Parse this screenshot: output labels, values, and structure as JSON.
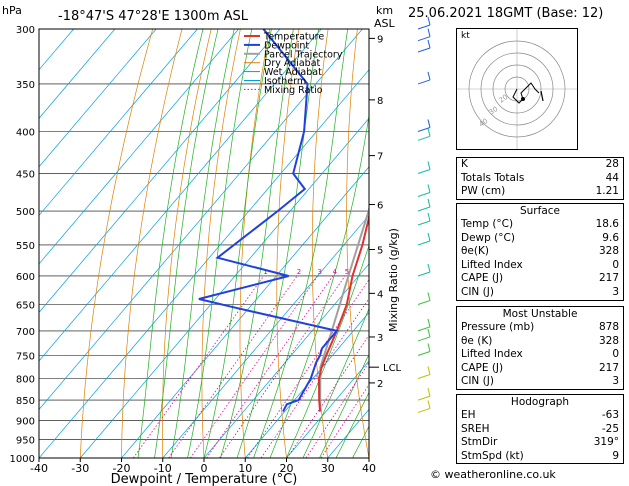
{
  "header": {
    "hpa_label": "hPa",
    "location": "-18°47'S  47°28'E  1300m  ASL",
    "km_label": "km",
    "asl_label": "ASL",
    "datetime": "25.06.2021  18GMT  (Base: 12)"
  },
  "chart_data": {
    "type": "skew-t log-p",
    "pressure_ticks": [
      300,
      350,
      400,
      450,
      500,
      550,
      600,
      650,
      700,
      750,
      800,
      850,
      900,
      950,
      1000
    ],
    "temp_ticks": [
      -40,
      -30,
      -20,
      -10,
      0,
      10,
      20,
      30,
      40
    ],
    "xlabel": "Dewpoint / Temperature (°C)",
    "ylabel": "Mixing Ratio (g/kg)",
    "km_ticks": [
      {
        "label": "9",
        "p": 308
      },
      {
        "label": "8",
        "p": 366
      },
      {
        "label": "7",
        "p": 428
      },
      {
        "label": "6",
        "p": 491
      },
      {
        "label": "5",
        "p": 557
      },
      {
        "label": "4",
        "p": 630
      },
      {
        "label": "3",
        "p": 712
      },
      {
        "label": "2",
        "p": 810
      }
    ],
    "lcl": {
      "label": "LCL",
      "p": 775
    },
    "mixing_ratio_values": [
      "1",
      "2",
      "3",
      "4",
      "5",
      "8",
      "10",
      "15",
      "20",
      "25"
    ],
    "legend": [
      "Temperature",
      "Dewpoint",
      "Parcel Trajectory",
      "Dry Adiabat",
      "Wet Adiabat",
      "Isotherm",
      "Mixing Ratio"
    ],
    "legend_placement": "top-left of plot",
    "temperature": [
      {
        "p": 878,
        "t": 18.6
      },
      {
        "p": 850,
        "t": 16.0
      },
      {
        "p": 800,
        "t": 11.5
      },
      {
        "p": 775,
        "t": 9.8
      },
      {
        "p": 750,
        "t": 8.5
      },
      {
        "p": 700,
        "t": 6.0
      },
      {
        "p": 650,
        "t": 3.0
      },
      {
        "p": 600,
        "t": -1.5
      },
      {
        "p": 550,
        "t": -5.5
      },
      {
        "p": 500,
        "t": -10.5
      },
      {
        "p": 450,
        "t": -16.5
      },
      {
        "p": 400,
        "t": -23.5
      },
      {
        "p": 370,
        "t": -29.0
      },
      {
        "p": 350,
        "t": -31.5
      },
      {
        "p": 300,
        "t": -41.0
      }
    ],
    "dewpoint": [
      {
        "p": 878,
        "t": 9.6
      },
      {
        "p": 860,
        "t": 9.0
      },
      {
        "p": 850,
        "t": 11.0
      },
      {
        "p": 800,
        "t": 9.5
      },
      {
        "p": 765,
        "t": 7.5
      },
      {
        "p": 750,
        "t": 7.0
      },
      {
        "p": 735,
        "t": 6.0
      },
      {
        "p": 700,
        "t": 6.0
      },
      {
        "p": 655,
        "t": -24.0
      },
      {
        "p": 640,
        "t": -34.0
      },
      {
        "p": 600,
        "t": -17.0
      },
      {
        "p": 570,
        "t": -38.0
      },
      {
        "p": 500,
        "t": -33.0
      },
      {
        "p": 470,
        "t": -31.0
      },
      {
        "p": 450,
        "t": -37.0
      },
      {
        "p": 400,
        "t": -43.0
      },
      {
        "p": 350,
        "t": -52.0
      },
      {
        "p": 300,
        "t": -74.0
      }
    ],
    "parcel": [
      {
        "p": 878,
        "t": 18.6
      },
      {
        "p": 775,
        "t": 9.5
      },
      {
        "p": 700,
        "t": 4.8
      },
      {
        "p": 600,
        "t": -2.5
      },
      {
        "p": 500,
        "t": -11.0
      },
      {
        "p": 400,
        "t": -22.5
      },
      {
        "p": 300,
        "t": -39.0
      }
    ],
    "colors": {
      "temperature": "#e03030",
      "dewpoint": "#2040e0",
      "parcel": "#a0a0a0",
      "dry_adiabat": "#e08000",
      "wet_adiabat": "#20b020",
      "isotherm": "#00a0e0",
      "mixing_ratio": "#e000a0",
      "wind_barb": "#40c040"
    }
  },
  "hodograph": {
    "label": "kt",
    "ring_labels": [
      "10",
      "20",
      "30",
      "40"
    ]
  },
  "indices": [
    {
      "label": "K",
      "value": "28"
    },
    {
      "label": "Totals Totals",
      "value": "44"
    },
    {
      "label": "PW (cm)",
      "value": "1.21"
    }
  ],
  "surface": {
    "title": "Surface",
    "rows": [
      {
        "label": "Temp (°C)",
        "value": "18.6"
      },
      {
        "label": "Dewp (°C)",
        "value": "9.6"
      },
      {
        "label": "θe(K)",
        "value": "328"
      },
      {
        "label": "Lifted Index",
        "value": "0"
      },
      {
        "label": "CAPE (J)",
        "value": "217"
      },
      {
        "label": "CIN (J)",
        "value": "3"
      }
    ]
  },
  "most_unstable": {
    "title": "Most Unstable",
    "rows": [
      {
        "label": "Pressure (mb)",
        "value": "878"
      },
      {
        "label": "θe (K)",
        "value": "328"
      },
      {
        "label": "Lifted Index",
        "value": "0"
      },
      {
        "label": "CAPE (J)",
        "value": "217"
      },
      {
        "label": "CIN (J)",
        "value": "3"
      }
    ]
  },
  "hodograph_table": {
    "title": "Hodograph",
    "rows": [
      {
        "label": "EH",
        "value": "-63"
      },
      {
        "label": "SREH",
        "value": "-25"
      },
      {
        "label": "StmDir",
        "value": "319°"
      },
      {
        "label": "StmSpd (kt)",
        "value": "9"
      }
    ]
  },
  "credit": "© weatheronline.co.uk"
}
